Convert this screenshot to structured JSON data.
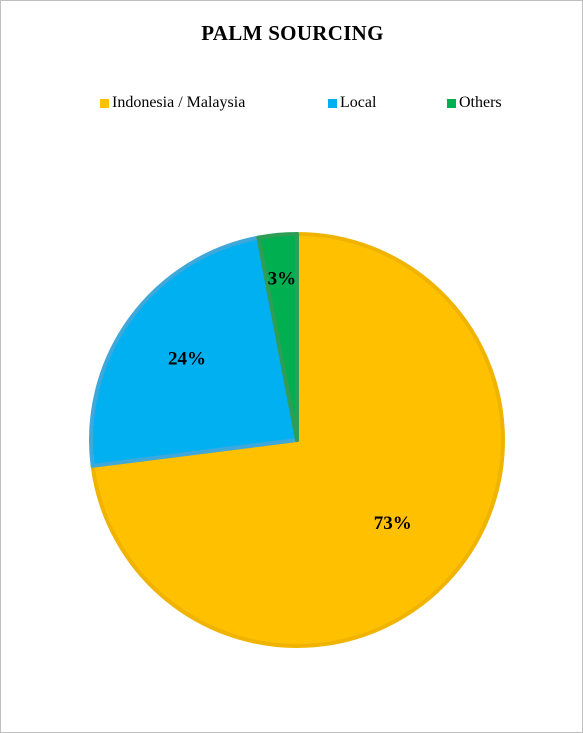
{
  "chart_data": {
    "type": "pie",
    "title": "PALM SOURCING",
    "legend_position": "top",
    "slices": [
      {
        "label": "Indonesia / Malaysia",
        "value": 73,
        "display": "73%",
        "color": "#FFC000",
        "edge": "#F0B400"
      },
      {
        "label": "Local",
        "value": 24,
        "display": "24%",
        "color": "#00B0F0",
        "edge": "#3FA8DA"
      },
      {
        "label": "Others",
        "value": 3,
        "display": "3%",
        "color": "#00B050",
        "edge": "#2E9D55"
      }
    ]
  }
}
